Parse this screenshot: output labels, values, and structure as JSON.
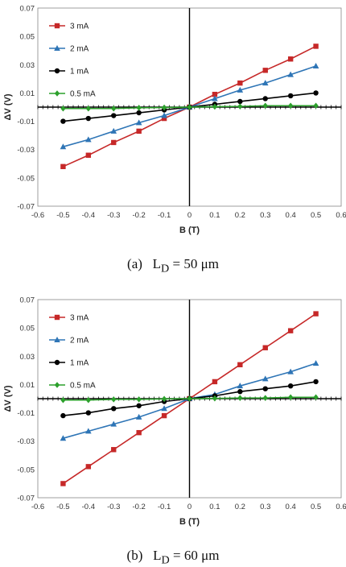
{
  "chart_data": [
    {
      "type": "line",
      "xlabel": "B (T)",
      "ylabel": "ΔV (V)",
      "xlim": [
        -0.6,
        0.6
      ],
      "ylim": [
        -0.07,
        0.07
      ],
      "x_ticks": [
        "-0.6",
        "-0.5",
        "-0.4",
        "-0.3",
        "-0.2",
        "-0.1",
        "0",
        "0.1",
        "0.2",
        "0.3",
        "0.4",
        "0.5",
        "0.6"
      ],
      "y_ticks": [
        "0.07",
        "0.05",
        "0.03",
        "0.01",
        "-0.01",
        "-0.03",
        "-0.05",
        "-0.07"
      ],
      "grid": false,
      "legend_position": "top-left",
      "x": [
        -0.5,
        -0.4,
        -0.3,
        -0.2,
        -0.1,
        0,
        0.1,
        0.2,
        0.3,
        0.4,
        0.5
      ],
      "series": [
        {
          "name": "3 mA",
          "color": "#c62828",
          "marker": "square",
          "values": [
            -0.042,
            -0.034,
            -0.025,
            -0.017,
            -0.008,
            0,
            0.009,
            0.017,
            0.026,
            0.034,
            0.043
          ]
        },
        {
          "name": "2 mA",
          "color": "#2e75b6",
          "marker": "triangle",
          "values": [
            -0.028,
            -0.023,
            -0.017,
            -0.011,
            -0.006,
            0,
            0.006,
            0.012,
            0.017,
            0.023,
            0.029
          ]
        },
        {
          "name": "1 mA",
          "color": "#000000",
          "marker": "circle",
          "values": [
            -0.01,
            -0.008,
            -0.006,
            -0.004,
            -0.002,
            0,
            0.002,
            0.004,
            0.006,
            0.008,
            0.01
          ]
        },
        {
          "name": "0.5 mA",
          "color": "#2ca02c",
          "marker": "diamond",
          "values": [
            -0.001,
            -0.001,
            -0.001,
            -0.0005,
            -0.0003,
            0,
            0.0003,
            0.0005,
            0.001,
            0.001,
            0.001
          ]
        }
      ]
    },
    {
      "type": "line",
      "xlabel": "B (T)",
      "ylabel": "ΔV (V)",
      "xlim": [
        -0.6,
        0.6
      ],
      "ylim": [
        -0.07,
        0.07
      ],
      "x_ticks": [
        "-0.6",
        "-0.5",
        "-0.4",
        "-0.3",
        "-0.2",
        "-0.1",
        "0",
        "0.1",
        "0.2",
        "0.3",
        "0.4",
        "0.5",
        "0.6"
      ],
      "y_ticks": [
        "0.07",
        "0.05",
        "0.03",
        "0.01",
        "-0.01",
        "-0.03",
        "-0.05",
        "-0.07"
      ],
      "grid": false,
      "legend_position": "top-left",
      "x": [
        -0.5,
        -0.4,
        -0.3,
        -0.2,
        -0.1,
        0,
        0.1,
        0.2,
        0.3,
        0.4,
        0.5
      ],
      "series": [
        {
          "name": "3 mA",
          "color": "#c62828",
          "marker": "square",
          "values": [
            -0.06,
            -0.048,
            -0.036,
            -0.024,
            -0.012,
            0,
            0.012,
            0.024,
            0.036,
            0.048,
            0.06
          ]
        },
        {
          "name": "2 mA",
          "color": "#2e75b6",
          "marker": "triangle",
          "values": [
            -0.028,
            -0.023,
            -0.018,
            -0.013,
            -0.007,
            0,
            0.003,
            0.009,
            0.014,
            0.019,
            0.025
          ]
        },
        {
          "name": "1 mA",
          "color": "#000000",
          "marker": "circle",
          "values": [
            -0.012,
            -0.01,
            -0.007,
            -0.005,
            -0.002,
            0,
            0.002,
            0.005,
            0.007,
            0.009,
            0.012
          ]
        },
        {
          "name": "0.5 mA",
          "color": "#2ca02c",
          "marker": "diamond",
          "values": [
            -0.001,
            -0.001,
            -0.0005,
            -0.0005,
            -0.0002,
            0,
            0.0002,
            0.0005,
            0.0005,
            0.001,
            0.001
          ]
        }
      ]
    }
  ],
  "captions": [
    {
      "label": "(a)",
      "text": "L",
      "sub": "D",
      "value": " = 50 μm"
    },
    {
      "label": "(b)",
      "text": "L",
      "sub": "D",
      "value": " = 60 μm"
    }
  ]
}
